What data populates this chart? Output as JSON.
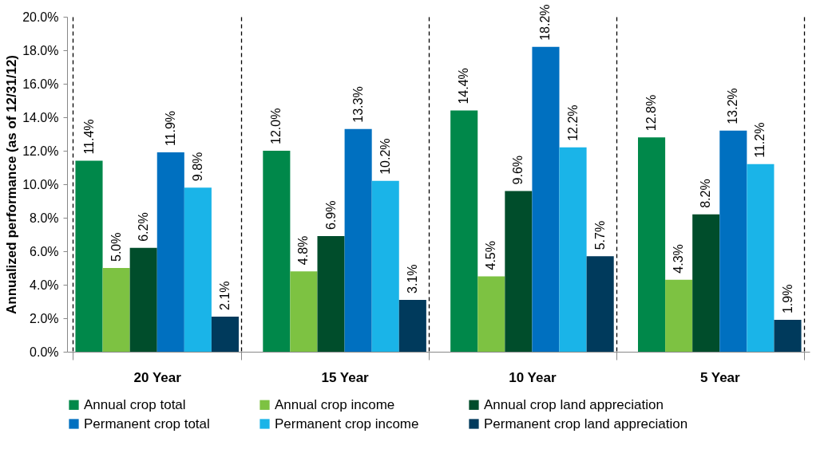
{
  "chart_data": {
    "type": "bar",
    "ylabel": "Annualized performance  (as of 12/31/12)",
    "categories": [
      "20 Year",
      "15 Year",
      "10 Year",
      "5 Year"
    ],
    "series": [
      {
        "name": "Annual crop total",
        "color": "#00884a",
        "values": [
          11.4,
          12.0,
          14.4,
          12.8
        ],
        "value_labels": [
          "11.4%",
          "12.0%",
          "14.4%",
          "12.8%"
        ]
      },
      {
        "name": "Annual crop income",
        "color": "#7dc242",
        "values": [
          5.0,
          4.8,
          4.5,
          4.3
        ],
        "value_labels": [
          "5.0%",
          "4.8%",
          "4.5%",
          "4.3%"
        ]
      },
      {
        "name": "Annual crop land appreciation",
        "color": "#004d2b",
        "values": [
          6.2,
          6.9,
          9.6,
          8.2
        ],
        "value_labels": [
          "6.2%",
          "6.9%",
          "9.6%",
          "8.2%"
        ]
      },
      {
        "name": "Permanent crop total",
        "color": "#0070c0",
        "values": [
          11.9,
          13.3,
          18.2,
          13.2
        ],
        "value_labels": [
          "11.9%",
          "13.3%",
          "18.2%",
          "13.2%"
        ]
      },
      {
        "name": "Permanent crop income",
        "color": "#1ab4e8",
        "values": [
          9.8,
          10.2,
          12.2,
          11.2
        ],
        "value_labels": [
          "9.8%",
          "10.2%",
          "12.2%",
          "11.2%"
        ]
      },
      {
        "name": "Permanent crop land appreciation",
        "color": "#003a5c",
        "values": [
          2.1,
          3.1,
          5.7,
          1.9
        ],
        "value_labels": [
          "2.1%",
          "3.1%",
          "5.7%",
          "1.9%"
        ]
      }
    ],
    "ylim": [
      0,
      20
    ],
    "yticks": [
      {
        "value": 0,
        "label": "0.0%"
      },
      {
        "value": 2,
        "label": "2.0%"
      },
      {
        "value": 4,
        "label": "4.0%"
      },
      {
        "value": 6,
        "label": "6.0%"
      },
      {
        "value": 8,
        "label": "8.0%"
      },
      {
        "value": 10,
        "label": "10.0%"
      },
      {
        "value": 12,
        "label": "12.0%"
      },
      {
        "value": 14,
        "label": "14.0%"
      },
      {
        "value": 16,
        "label": "16.0%"
      },
      {
        "value": 18,
        "label": "18.0%"
      },
      {
        "value": 20,
        "label": "20.0%"
      }
    ],
    "grid": "x",
    "legend": "bottom"
  }
}
